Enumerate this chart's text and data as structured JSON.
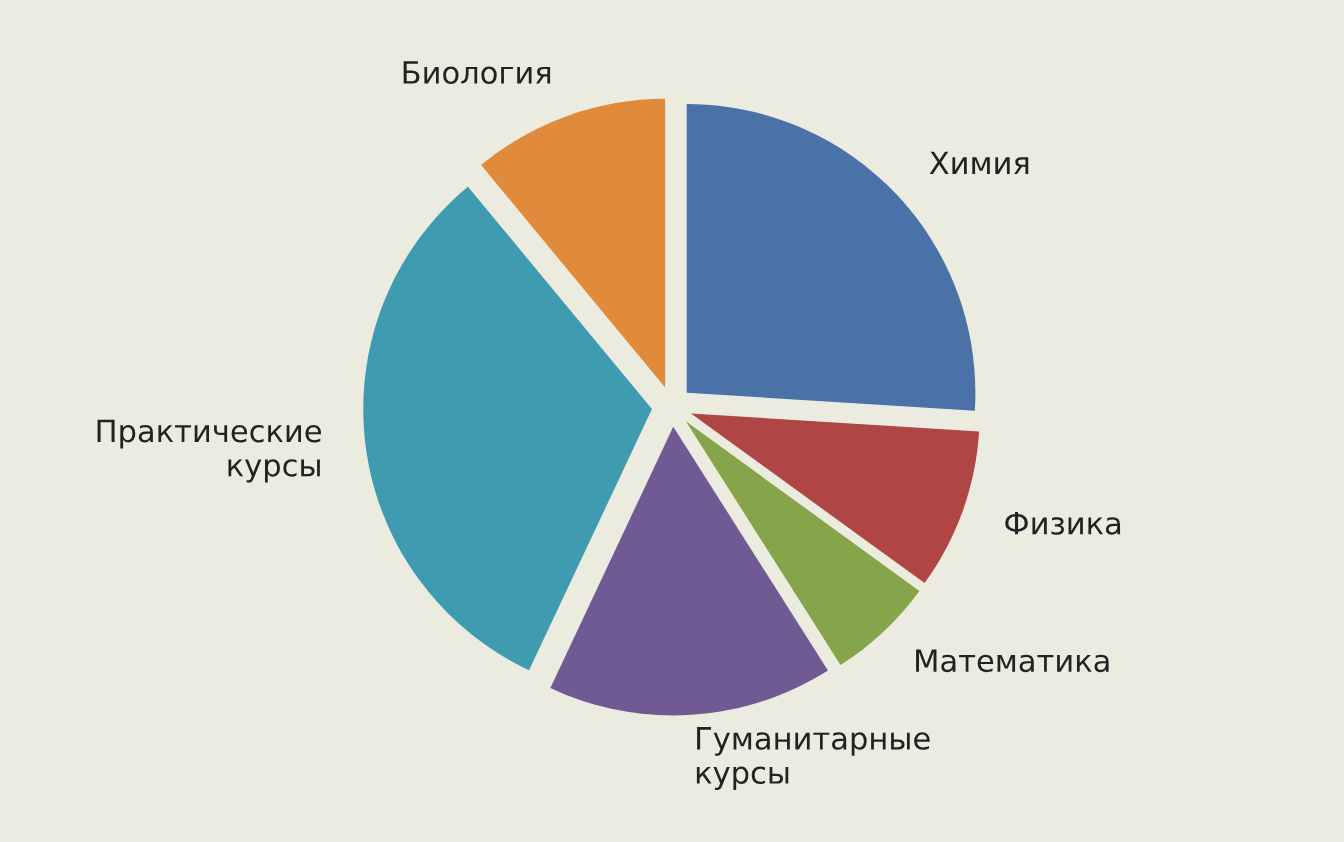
{
  "chart_data": {
    "type": "pie",
    "categories": [
      "Химия",
      "Физика",
      "Математика",
      "Гуманитарные\nкурсы",
      "Практические\nкурсы",
      "Биология"
    ],
    "values": [
      26,
      9,
      6,
      16,
      32,
      11
    ],
    "colors": [
      "#4a72a8",
      "#b04545",
      "#86a44a",
      "#6f5a94",
      "#3f9bb0",
      "#e08a3c"
    ],
    "legend": false
  }
}
